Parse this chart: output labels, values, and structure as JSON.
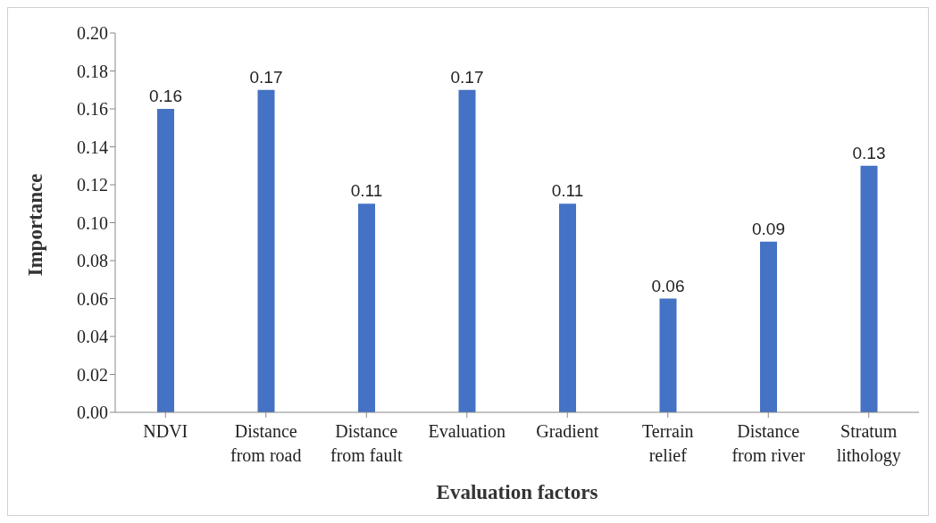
{
  "chart_data": {
    "type": "bar",
    "xlabel": "Evaluation factors",
    "ylabel": "Importance",
    "categories": [
      "NDVI",
      "Distance from road",
      "Distance from fault",
      "Evaluation",
      "Gradient",
      "Terrain relief",
      "Distance from river",
      "Stratum lithology"
    ],
    "values": [
      0.16,
      0.17,
      0.11,
      0.17,
      0.11,
      0.06,
      0.09,
      0.13
    ],
    "color": "#4472c4",
    "ylim": [
      0,
      0.2
    ],
    "yticks": [
      {
        "value": 0,
        "label": "0.00"
      },
      {
        "value": 0.02,
        "label": "0.02"
      },
      {
        "value": 0.04,
        "label": "0.04"
      },
      {
        "value": 0.06,
        "label": "0.06"
      },
      {
        "value": 0.08,
        "label": "0.08"
      },
      {
        "value": 0.1,
        "label": "0.10"
      },
      {
        "value": 0.12,
        "label": "0.12"
      },
      {
        "value": 0.14,
        "label": "0.14"
      },
      {
        "value": 0.16,
        "label": "0.16"
      },
      {
        "value": 0.18,
        "label": "0.18"
      },
      {
        "value": 0.2,
        "label": "0.20"
      }
    ],
    "data_labels": true,
    "grid": false,
    "legend": false
  }
}
